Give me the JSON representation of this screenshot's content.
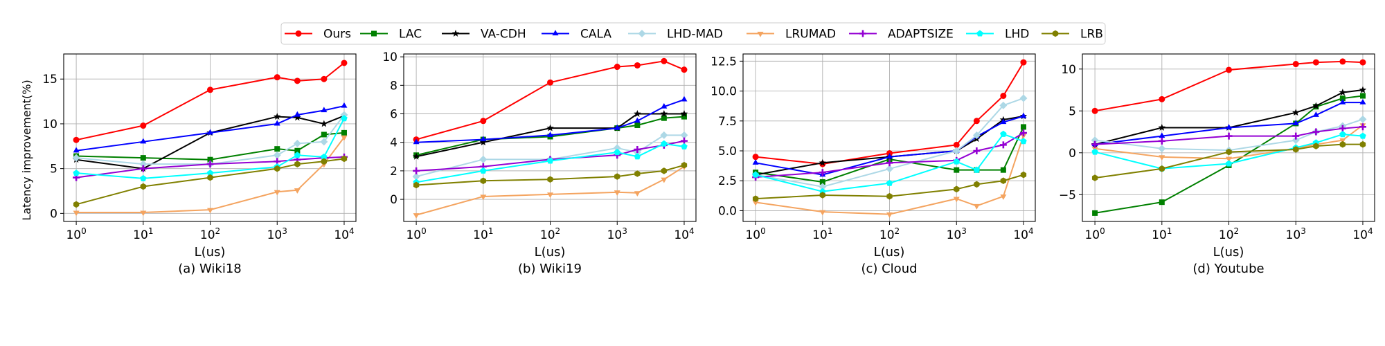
{
  "colors": {
    "Ours": "#ff0000",
    "LAC": "#008000",
    "VA-CDH": "#000000",
    "CALA": "#0000ff",
    "LHD-MAD": "#add8e6",
    "LRUMAD": "#f4a460",
    "ADAPTSIZE": "#9400d3",
    "LHD": "#00ffff",
    "LRB": "#808000"
  },
  "legend": {
    "items": [
      {
        "name": "Ours",
        "marker": "circle"
      },
      {
        "name": "LAC",
        "marker": "square"
      },
      {
        "name": "VA-CDH",
        "marker": "star"
      },
      {
        "name": "CALA",
        "marker": "triangle-up"
      },
      {
        "name": "LHD-MAD",
        "marker": "diamond"
      },
      {
        "name": "LRUMAD",
        "marker": "triangle-down"
      },
      {
        "name": "ADAPTSIZE",
        "marker": "plus"
      },
      {
        "name": "LHD",
        "marker": "pentagon"
      },
      {
        "name": "LRB",
        "marker": "hexagon"
      }
    ]
  },
  "ylabel_shared": "Latency improvement(%)",
  "chart_data": [
    {
      "type": "line",
      "title": "(a) Wiki18",
      "xlabel": "L(us)",
      "ylabel": "Latency improvement(%)",
      "xscale": "log",
      "xlim": [
        0.65,
        15000
      ],
      "ylim": [
        -0.9,
        17.8
      ],
      "xticks": [
        {
          "value": 1,
          "label": "10^0"
        },
        {
          "value": 10,
          "label": "10^1"
        },
        {
          "value": 100,
          "label": "10^2"
        },
        {
          "value": 1000,
          "label": "10^3"
        },
        {
          "value": 10000,
          "label": "10^4"
        }
      ],
      "yticks": [
        0,
        5,
        10,
        15
      ],
      "grid": true,
      "x": [
        1,
        10,
        100,
        1000,
        2000,
        5000,
        10000
      ],
      "series": [
        {
          "name": "Ours",
          "values": [
            8.2,
            9.8,
            13.8,
            15.2,
            14.8,
            15.0,
            16.8
          ]
        },
        {
          "name": "LAC",
          "values": [
            6.4,
            6.2,
            6.0,
            7.2,
            7.0,
            8.8,
            9.0
          ]
        },
        {
          "name": "VA-CDH",
          "values": [
            6.0,
            5.0,
            9.0,
            10.8,
            10.7,
            10.0,
            10.9
          ]
        },
        {
          "name": "CALA",
          "values": [
            7.0,
            8.0,
            9.0,
            10.0,
            11.0,
            11.5,
            12.0
          ]
        },
        {
          "name": "LHD-MAD",
          "values": [
            6.2,
            5.5,
            5.5,
            6.5,
            7.8,
            8.0,
            11.0
          ]
        },
        {
          "name": "LRUMAD",
          "values": [
            0.1,
            0.1,
            0.4,
            2.4,
            2.6,
            5.5,
            8.5
          ]
        },
        {
          "name": "ADAPTSIZE",
          "values": [
            4.0,
            5.0,
            5.5,
            5.8,
            6.0,
            6.2,
            6.3
          ]
        },
        {
          "name": "LHD",
          "values": [
            4.5,
            3.9,
            4.5,
            5.2,
            6.5,
            6.3,
            10.6
          ]
        },
        {
          "name": "LRB",
          "values": [
            1.0,
            3.0,
            4.0,
            5.0,
            5.5,
            5.8,
            6.1
          ]
        }
      ]
    },
    {
      "type": "line",
      "title": "(b) Wiki19",
      "xlabel": "L(us)",
      "ylabel": "",
      "xscale": "log",
      "xlim": [
        0.65,
        15000
      ],
      "ylim": [
        -1.55,
        10.2
      ],
      "xticks": [
        {
          "value": 1,
          "label": "10^0"
        },
        {
          "value": 10,
          "label": "10^1"
        },
        {
          "value": 100,
          "label": "10^2"
        },
        {
          "value": 1000,
          "label": "10^3"
        },
        {
          "value": 10000,
          "label": "10^4"
        }
      ],
      "yticks": [
        0,
        2,
        4,
        6,
        8,
        10
      ],
      "grid": true,
      "x": [
        1,
        10,
        100,
        1000,
        2000,
        5000,
        10000
      ],
      "series": [
        {
          "name": "Ours",
          "values": [
            4.2,
            5.5,
            8.2,
            9.3,
            9.4,
            9.7,
            9.1
          ]
        },
        {
          "name": "LAC",
          "values": [
            3.1,
            4.2,
            4.4,
            5.0,
            5.2,
            5.7,
            5.8
          ]
        },
        {
          "name": "VA-CDH",
          "values": [
            3.0,
            4.0,
            5.0,
            5.0,
            6.0,
            6.0,
            6.0
          ]
        },
        {
          "name": "CALA",
          "values": [
            4.0,
            4.2,
            4.5,
            5.0,
            5.5,
            6.5,
            7.0
          ]
        },
        {
          "name": "LHD-MAD",
          "values": [
            1.6,
            2.8,
            2.8,
            3.6,
            3.3,
            4.5,
            4.5
          ]
        },
        {
          "name": "LRUMAD",
          "values": [
            -1.1,
            0.2,
            0.35,
            0.5,
            0.45,
            1.4,
            2.3
          ]
        },
        {
          "name": "ADAPTSIZE",
          "values": [
            2.0,
            2.3,
            2.8,
            3.1,
            3.5,
            3.8,
            4.1
          ]
        },
        {
          "name": "LHD",
          "values": [
            1.2,
            2.0,
            2.7,
            3.3,
            3.0,
            3.9,
            3.7
          ]
        },
        {
          "name": "LRB",
          "values": [
            1.0,
            1.3,
            1.4,
            1.6,
            1.8,
            2.0,
            2.4
          ]
        }
      ]
    },
    {
      "type": "line",
      "title": "(c) Cloud",
      "xlabel": "L(us)",
      "ylabel": "",
      "xscale": "log",
      "xlim": [
        0.65,
        15000
      ],
      "ylim": [
        -0.9,
        13.1
      ],
      "xticks": [
        {
          "value": 1,
          "label": "10^0"
        },
        {
          "value": 10,
          "label": "10^1"
        },
        {
          "value": 100,
          "label": "10^2"
        },
        {
          "value": 1000,
          "label": "10^3"
        },
        {
          "value": 10000,
          "label": "10^4"
        }
      ],
      "yticks": [
        0.0,
        2.5,
        5.0,
        7.5,
        10.0,
        12.5
      ],
      "ytick_labels": [
        "0.0",
        "2.5",
        "5.0",
        "7.5",
        "10.0",
        "12.5"
      ],
      "grid": true,
      "x": [
        1,
        10,
        100,
        1000,
        2000,
        5000,
        10000
      ],
      "series": [
        {
          "name": "Ours",
          "values": [
            4.5,
            3.9,
            4.8,
            5.5,
            7.5,
            9.6,
            12.4
          ]
        },
        {
          "name": "LAC",
          "values": [
            3.2,
            2.4,
            4.3,
            3.4,
            3.4,
            3.4,
            7.0
          ]
        },
        {
          "name": "VA-CDH",
          "values": [
            3.0,
            4.0,
            4.5,
            5.0,
            6.0,
            7.6,
            7.9
          ]
        },
        {
          "name": "CALA",
          "values": [
            4.0,
            3.0,
            4.5,
            5.0,
            6.2,
            7.4,
            7.9
          ]
        },
        {
          "name": "LHD-MAD",
          "values": [
            3.0,
            2.0,
            3.5,
            5.0,
            6.3,
            8.8,
            9.4
          ]
        },
        {
          "name": "LRUMAD",
          "values": [
            0.7,
            -0.1,
            -0.3,
            1.0,
            0.4,
            1.2,
            6.3
          ]
        },
        {
          "name": "ADAPTSIZE",
          "values": [
            2.8,
            3.2,
            4.0,
            4.2,
            5.0,
            5.5,
            6.5
          ]
        },
        {
          "name": "LHD",
          "values": [
            3.0,
            1.6,
            2.3,
            4.1,
            3.4,
            6.4,
            5.8
          ]
        },
        {
          "name": "LRB",
          "values": [
            1.0,
            1.3,
            1.2,
            1.8,
            2.2,
            2.5,
            3.0
          ]
        }
      ]
    },
    {
      "type": "line",
      "title": "(d) Youtube",
      "xlabel": "L(us)",
      "ylabel": "",
      "xscale": "log",
      "xlim": [
        0.65,
        15000
      ],
      "ylim": [
        -8.2,
        11.8
      ],
      "xticks": [
        {
          "value": 1,
          "label": "10^0"
        },
        {
          "value": 10,
          "label": "10^1"
        },
        {
          "value": 100,
          "label": "10^2"
        },
        {
          "value": 1000,
          "label": "10^3"
        },
        {
          "value": 10000,
          "label": "10^4"
        }
      ],
      "yticks": [
        -5,
        0,
        5,
        10
      ],
      "grid": true,
      "x": [
        1,
        10,
        100,
        1000,
        2000,
        5000,
        10000
      ],
      "series": [
        {
          "name": "Ours",
          "values": [
            5.0,
            6.4,
            9.9,
            10.6,
            10.8,
            10.9,
            10.8
          ]
        },
        {
          "name": "LAC",
          "values": [
            -7.2,
            -5.9,
            -1.5,
            3.5,
            5.5,
            6.5,
            6.8
          ]
        },
        {
          "name": "VA-CDH",
          "values": [
            1.0,
            3.0,
            3.0,
            4.8,
            5.6,
            7.2,
            7.5
          ]
        },
        {
          "name": "CALA",
          "values": [
            1.0,
            2.0,
            3.0,
            3.5,
            4.5,
            6.0,
            6.0
          ]
        },
        {
          "name": "LHD-MAD",
          "values": [
            1.5,
            0.5,
            0.3,
            1.5,
            2.5,
            3.2,
            4.0
          ]
        },
        {
          "name": "LRUMAD",
          "values": [
            0.5,
            -0.5,
            -0.7,
            0.5,
            1.0,
            1.5,
            3.3
          ]
        },
        {
          "name": "ADAPTSIZE",
          "values": [
            1.0,
            1.4,
            2.0,
            2.0,
            2.5,
            2.9,
            3.1
          ]
        },
        {
          "name": "LHD",
          "values": [
            0.1,
            -1.9,
            -1.3,
            0.6,
            1.2,
            2.2,
            2.0
          ]
        },
        {
          "name": "LRB",
          "values": [
            -3.0,
            -1.9,
            0.1,
            0.4,
            0.8,
            1.0,
            1.0
          ]
        }
      ]
    }
  ]
}
